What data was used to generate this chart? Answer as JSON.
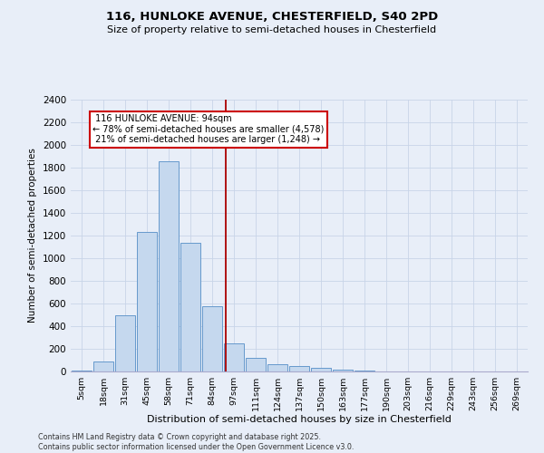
{
  "title_line1": "116, HUNLOKE AVENUE, CHESTERFIELD, S40 2PD",
  "title_line2": "Size of property relative to semi-detached houses in Chesterfield",
  "xlabel": "Distribution of semi-detached houses by size in Chesterfield",
  "ylabel": "Number of semi-detached properties",
  "categories": [
    "5sqm",
    "18sqm",
    "31sqm",
    "45sqm",
    "58sqm",
    "71sqm",
    "84sqm",
    "97sqm",
    "111sqm",
    "124sqm",
    "137sqm",
    "150sqm",
    "163sqm",
    "177sqm",
    "190sqm",
    "203sqm",
    "216sqm",
    "229sqm",
    "243sqm",
    "256sqm",
    "269sqm"
  ],
  "values": [
    10,
    85,
    500,
    1230,
    1860,
    1140,
    580,
    245,
    120,
    65,
    45,
    30,
    20,
    10,
    0,
    0,
    0,
    0,
    0,
    0,
    0
  ],
  "bar_color": "#c5d8ee",
  "bar_edgecolor": "#6699cc",
  "property_label": "116 HUNLOKE AVENUE: 94sqm",
  "pct_smaller": 78,
  "count_smaller": 4578,
  "pct_larger": 21,
  "count_larger": 1248,
  "vline_x": 6.62,
  "ylim": [
    0,
    2400
  ],
  "yticks": [
    0,
    200,
    400,
    600,
    800,
    1000,
    1200,
    1400,
    1600,
    1800,
    2000,
    2200,
    2400
  ],
  "annotation_box_facecolor": "#ffffff",
  "annotation_box_edgecolor": "#cc0000",
  "vline_color": "#aa0000",
  "grid_color": "#c8d4e8",
  "bg_color": "#e8eef8",
  "footer_line1": "Contains HM Land Registry data © Crown copyright and database right 2025.",
  "footer_line2": "Contains public sector information licensed under the Open Government Licence v3.0."
}
